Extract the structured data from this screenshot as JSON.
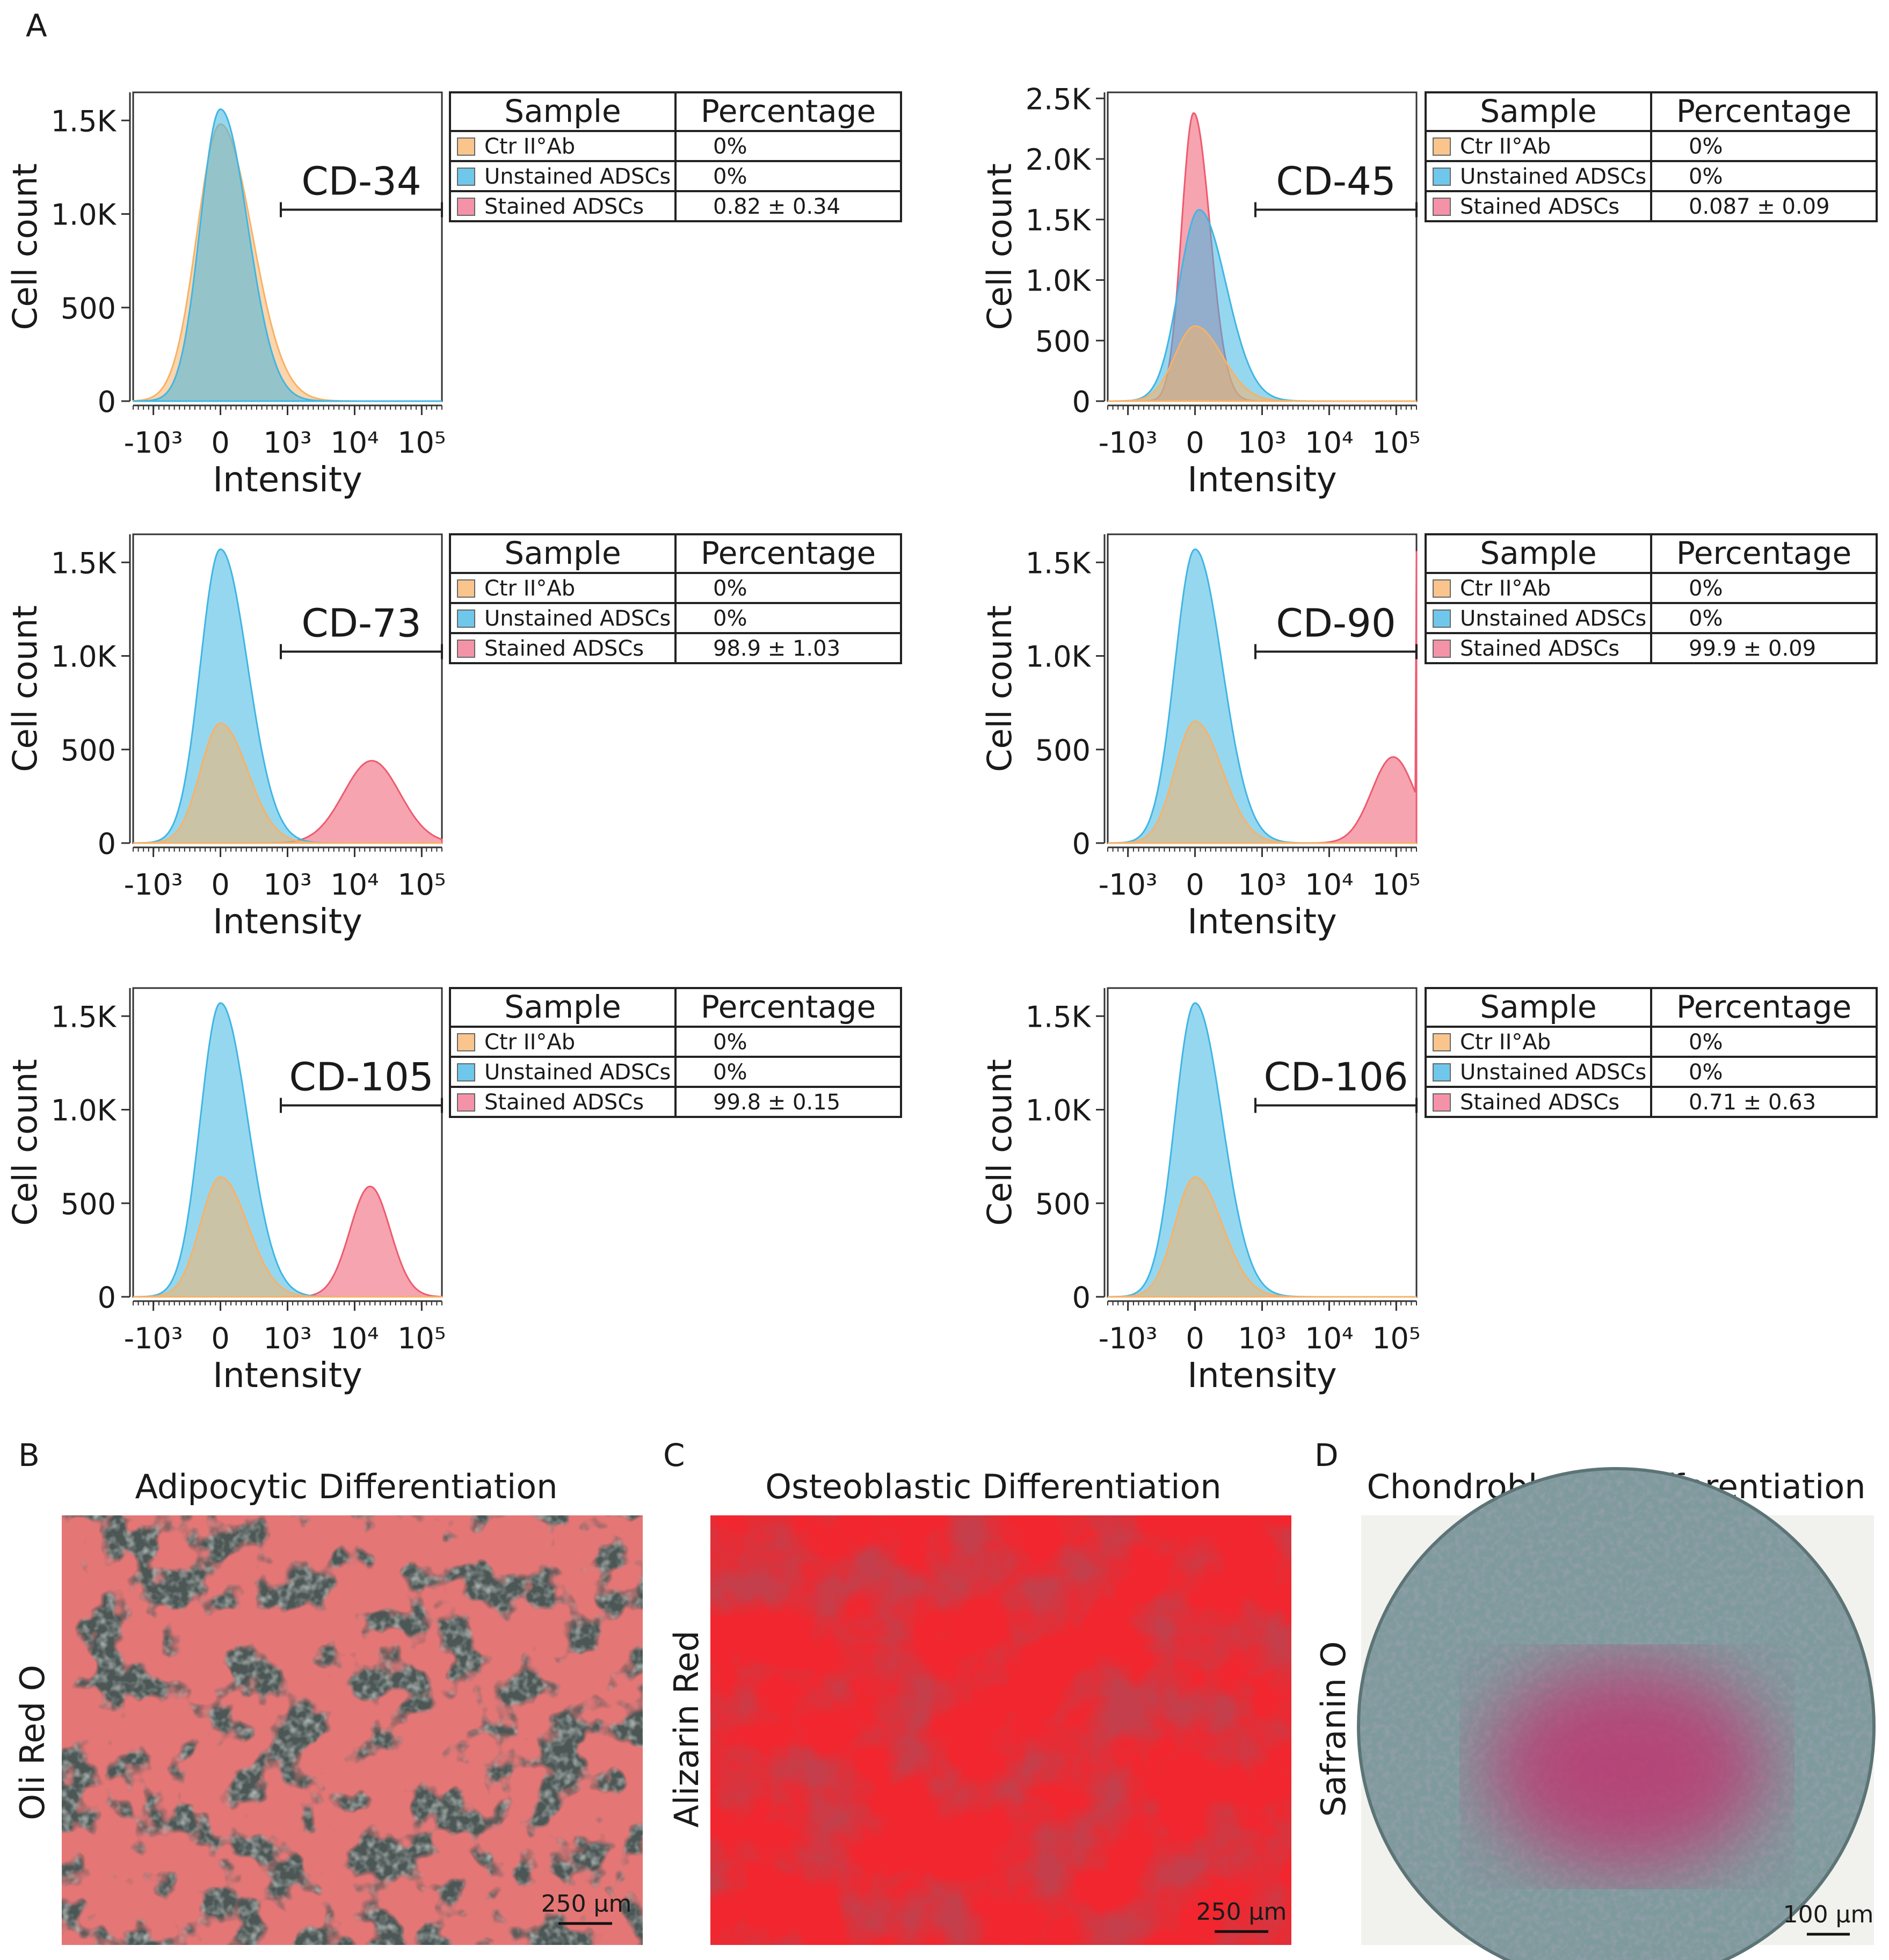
{
  "figure": {
    "panel_labels": [
      "A",
      "B",
      "C",
      "D"
    ]
  },
  "chart_data": [
    {
      "type": "area",
      "title": "CD-34",
      "xlabel": "Intensity",
      "ylabel": "Cell count",
      "yticks": [
        "0",
        "500",
        "1.0K",
        "1.5K"
      ],
      "ytick_values": [
        0,
        500,
        1000,
        1500
      ],
      "ylim": [
        0,
        1650
      ],
      "xticks": [
        "-10³",
        "0",
        "10³",
        "10⁴",
        "10⁵"
      ],
      "gate_x": [
        900,
        150000
      ],
      "series": [
        {
          "name": "Ctr II°Ab",
          "color": "#f7b267",
          "peak_x": 0,
          "peak": 1480,
          "width": 0.35
        },
        {
          "name": "Unstained ADSCs",
          "color": "#3fb6e4",
          "peak_x": 0,
          "peak": 1560,
          "width": 0.3
        }
      ],
      "table": {
        "headers": [
          "Sample",
          "Percentage"
        ],
        "rows": [
          {
            "sample": "Ctr II°Ab",
            "color": "#f7b267",
            "percentage": "0%"
          },
          {
            "sample": "Unstained ADSCs",
            "color": "#3fb6e4",
            "percentage": "0%"
          },
          {
            "sample": "Stained ADSCs",
            "color": "#f06f8a",
            "percentage": "0.82 ± 0.34"
          }
        ]
      }
    },
    {
      "type": "area",
      "title": "CD-45",
      "xlabel": "Intensity",
      "ylabel": "Cell count",
      "yticks": [
        "0",
        "500",
        "1.0K",
        "1.5K",
        "2.0K",
        "2.5K"
      ],
      "ytick_values": [
        0,
        500,
        1000,
        1500,
        2000,
        2500
      ],
      "ylim": [
        0,
        2550
      ],
      "xticks": [
        "-10³",
        "0",
        "10³",
        "10⁴",
        "10⁵"
      ],
      "gate_x": [
        900,
        150000
      ],
      "series": [
        {
          "name": "Stained ADSCs",
          "color": "#ee5a6e",
          "peak_x": -20,
          "peak": 2380,
          "width": 0.18
        },
        {
          "name": "Unstained ADSCs",
          "color": "#3fb6e4",
          "peak_x": 60,
          "peak": 1580,
          "width": 0.3
        },
        {
          "name": "Ctr II°Ab",
          "color": "#f7b267",
          "peak_x": 0,
          "peak": 620,
          "width": 0.3
        }
      ],
      "table": {
        "headers": [
          "Sample",
          "Percentage"
        ],
        "rows": [
          {
            "sample": "Ctr II°Ab",
            "color": "#f7b267",
            "percentage": "0%"
          },
          {
            "sample": "Unstained ADSCs",
            "color": "#3fb6e4",
            "percentage": "0%"
          },
          {
            "sample": "Stained ADSCs",
            "color": "#f06f8a",
            "percentage": "0.087 ± 0.09"
          }
        ]
      }
    },
    {
      "type": "area",
      "title": "CD-73",
      "xlabel": "Intensity",
      "ylabel": "Cell count",
      "yticks": [
        "0",
        "500",
        "1.0K",
        "1.5K"
      ],
      "ytick_values": [
        0,
        500,
        1000,
        1500
      ],
      "ylim": [
        0,
        1650
      ],
      "xticks": [
        "-10³",
        "0",
        "10³",
        "10⁴",
        "10⁵"
      ],
      "gate_x": [
        900,
        150000
      ],
      "series": [
        {
          "name": "Stained ADSCs",
          "color": "#ee5a6e",
          "peak_x": 18000,
          "peak": 440,
          "width": 0.42
        },
        {
          "name": "Unstained ADSCs",
          "color": "#3fb6e4",
          "peak_x": 0,
          "peak": 1570,
          "width": 0.3
        },
        {
          "name": "Ctr II°Ab",
          "color": "#f7b267",
          "peak_x": 0,
          "peak": 640,
          "width": 0.3
        }
      ],
      "table": {
        "headers": [
          "Sample",
          "Percentage"
        ],
        "rows": [
          {
            "sample": "Ctr II°Ab",
            "color": "#f7b267",
            "percentage": "0%"
          },
          {
            "sample": "Unstained ADSCs",
            "color": "#3fb6e4",
            "percentage": "0%"
          },
          {
            "sample": "Stained ADSCs",
            "color": "#f06f8a",
            "percentage": "98.9 ± 1.03"
          }
        ]
      }
    },
    {
      "type": "area",
      "title": "CD-90",
      "xlabel": "Intensity",
      "ylabel": "Cell count",
      "yticks": [
        "0",
        "500",
        "1.0K",
        "1.5K"
      ],
      "ytick_values": [
        0,
        500,
        1000,
        1500
      ],
      "ylim": [
        0,
        1650
      ],
      "xticks": [
        "-10³",
        "0",
        "10³",
        "10⁴",
        "10⁵"
      ],
      "gate_x": [
        900,
        150000
      ],
      "series": [
        {
          "name": "Stained ADSCs",
          "color": "#ee5a6e",
          "peak_x": 90000,
          "peak": 460,
          "width": 0.32,
          "edge_spike": 1560
        },
        {
          "name": "Unstained ADSCs",
          "color": "#3fb6e4",
          "peak_x": 0,
          "peak": 1570,
          "width": 0.3
        },
        {
          "name": "Ctr II°Ab",
          "color": "#f7b267",
          "peak_x": 0,
          "peak": 650,
          "width": 0.3
        }
      ],
      "table": {
        "headers": [
          "Sample",
          "Percentage"
        ],
        "rows": [
          {
            "sample": "Ctr II°Ab",
            "color": "#f7b267",
            "percentage": "0%"
          },
          {
            "sample": "Unstained ADSCs",
            "color": "#3fb6e4",
            "percentage": "0%"
          },
          {
            "sample": "Stained ADSCs",
            "color": "#f06f8a",
            "percentage": "99.9 ± 0.09"
          }
        ]
      }
    },
    {
      "type": "area",
      "title": "CD-105",
      "xlabel": "Intensity",
      "ylabel": "Cell count",
      "yticks": [
        "0",
        "500",
        "1.0K",
        "1.5K"
      ],
      "ytick_values": [
        0,
        500,
        1000,
        1500
      ],
      "ylim": [
        0,
        1650
      ],
      "xticks": [
        "-10³",
        "0",
        "10³",
        "10⁴",
        "10⁵"
      ],
      "gate_x": [
        900,
        150000
      ],
      "series": [
        {
          "name": "Stained ADSCs",
          "color": "#ee5a6e",
          "peak_x": 17000,
          "peak": 590,
          "width": 0.3
        },
        {
          "name": "Unstained ADSCs",
          "color": "#3fb6e4",
          "peak_x": 0,
          "peak": 1570,
          "width": 0.3
        },
        {
          "name": "Ctr II°Ab",
          "color": "#f7b267",
          "peak_x": 0,
          "peak": 640,
          "width": 0.3
        }
      ],
      "table": {
        "headers": [
          "Sample",
          "Percentage"
        ],
        "rows": [
          {
            "sample": "Ctr II°Ab",
            "color": "#f7b267",
            "percentage": "0%"
          },
          {
            "sample": "Unstained ADSCs",
            "color": "#3fb6e4",
            "percentage": "0%"
          },
          {
            "sample": "Stained ADSCs",
            "color": "#f06f8a",
            "percentage": "99.8 ± 0.15"
          }
        ]
      }
    },
    {
      "type": "area",
      "title": "CD-106",
      "xlabel": "Intensity",
      "ylabel": "Cell count",
      "yticks": [
        "0",
        "500",
        "1.0K",
        "1.5K"
      ],
      "ytick_values": [
        0,
        500,
        1000,
        1500
      ],
      "ylim": [
        0,
        1650
      ],
      "xticks": [
        "-10³",
        "0",
        "10³",
        "10⁴",
        "10⁵"
      ],
      "gate_x": [
        900,
        150000
      ],
      "series": [
        {
          "name": "Unstained ADSCs",
          "color": "#3fb6e4",
          "peak_x": 0,
          "peak": 1570,
          "width": 0.3
        },
        {
          "name": "Ctr II°Ab",
          "color": "#f7b267",
          "peak_x": 0,
          "peak": 640,
          "width": 0.3
        }
      ],
      "table": {
        "headers": [
          "Sample",
          "Percentage"
        ],
        "rows": [
          {
            "sample": "Ctr II°Ab",
            "color": "#f7b267",
            "percentage": "0%"
          },
          {
            "sample": "Unstained ADSCs",
            "color": "#3fb6e4",
            "percentage": "0%"
          },
          {
            "sample": "Stained ADSCs",
            "color": "#f06f8a",
            "percentage": "0.71 ± 0.63"
          }
        ]
      }
    }
  ],
  "micrographs": [
    {
      "label": "B",
      "title": "Adipocytic Differentiation",
      "stain": "Oli Red O",
      "scale": "250 µm"
    },
    {
      "label": "C",
      "title": "Osteoblastic Differentiation",
      "stain": "Alizarin Red",
      "scale": "250 µm"
    },
    {
      "label": "D",
      "title": "Chondroblastic Differentiation",
      "stain": "Safranin O",
      "scale": "100 µm"
    }
  ]
}
